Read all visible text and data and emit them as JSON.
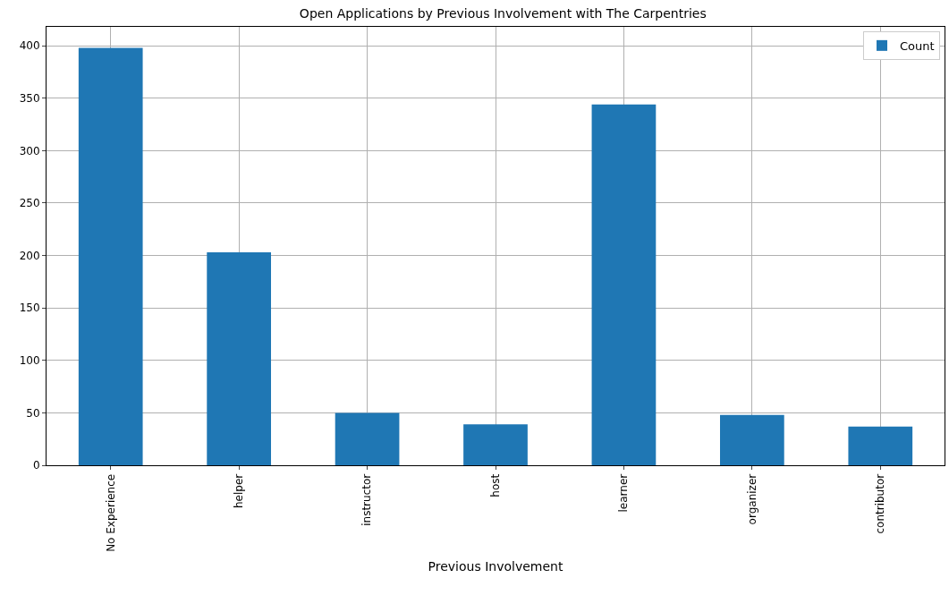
{
  "chart_data": {
    "type": "bar",
    "title": "Open Applications by Previous Involvement with The Carpentries",
    "xlabel": "Previous Involvement",
    "categories": [
      "No Experience",
      "helper",
      "instructor",
      "host",
      "learner",
      "organizer",
      "contributor"
    ],
    "series": [
      {
        "name": "Count",
        "color": "#1f77b4",
        "values": [
          398,
          203,
          50,
          39,
          344,
          48,
          37
        ]
      }
    ],
    "ylim": [
      0,
      418
    ],
    "yticks": [
      0,
      50,
      100,
      150,
      200,
      250,
      300,
      350,
      400
    ],
    "grid": true,
    "legend": "top right"
  }
}
